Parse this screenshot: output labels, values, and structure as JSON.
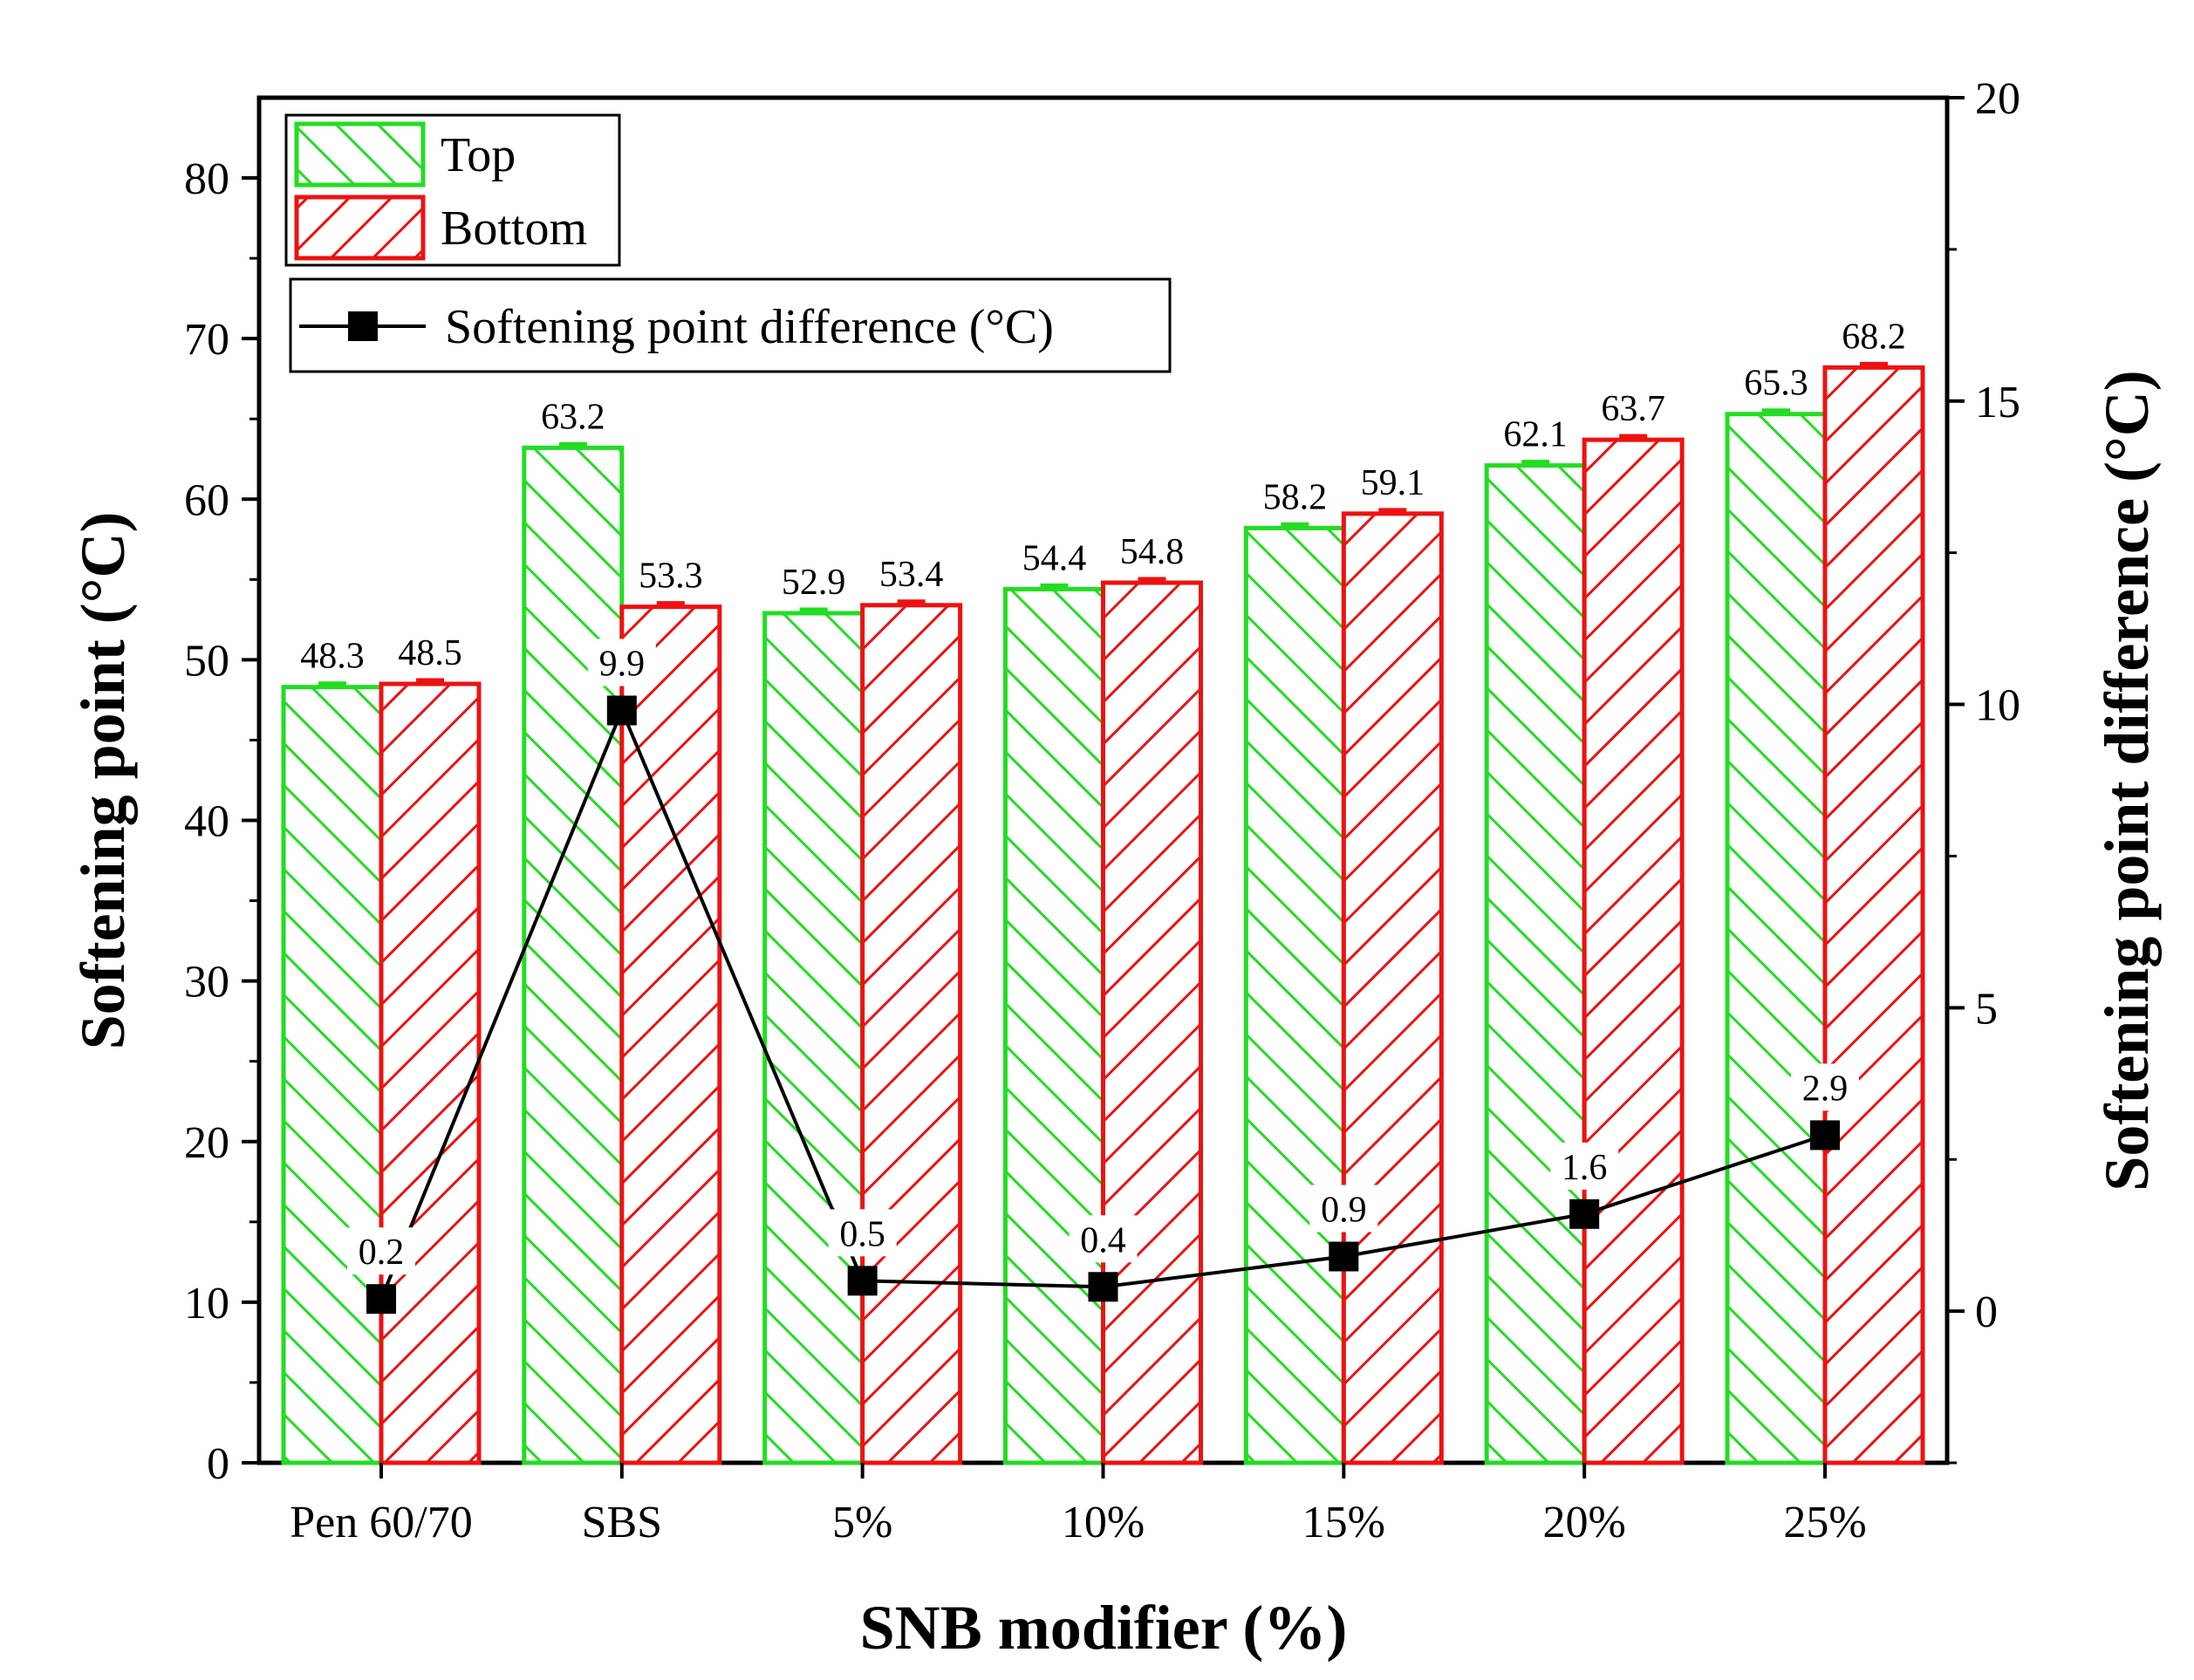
{
  "chart_data": {
    "type": "bar",
    "xlabel": "SNB modifier (%)",
    "ylabel": "Softening point (°C)",
    "y2label": "Softening point difference (°C)",
    "ylim": [
      0,
      85
    ],
    "y2lim": [
      -2.5,
      20
    ],
    "yticks": [
      0,
      10,
      20,
      30,
      40,
      50,
      60,
      70,
      80
    ],
    "y2ticks": [
      0,
      5,
      10,
      15,
      20
    ],
    "categories": [
      "Pen 60/70",
      "SBS",
      "5%",
      "10%",
      "15%",
      "20%",
      "25%"
    ],
    "series": [
      {
        "name": "Top",
        "values": [
          48.3,
          63.2,
          52.9,
          54.4,
          58.2,
          62.1,
          65.3
        ],
        "color": "#22dd22",
        "pattern": "forward-hatch"
      },
      {
        "name": "Bottom",
        "values": [
          48.5,
          53.3,
          53.4,
          54.8,
          59.1,
          63.7,
          68.2
        ],
        "color": "#ee1111",
        "pattern": "back-hatch"
      }
    ],
    "line_series": {
      "name": "Softening point difference (°C)",
      "axis": "right",
      "values": [
        0.2,
        9.9,
        0.5,
        0.4,
        0.9,
        1.6,
        2.9
      ],
      "color": "#000000"
    },
    "labels": {
      "top": [
        "48.3",
        "63.2",
        "52.9",
        "54.4",
        "58.2",
        "62.1",
        "65.3"
      ],
      "bottom": [
        "48.5",
        "53.3",
        "53.4",
        "54.8",
        "59.1",
        "63.7",
        "68.2"
      ],
      "diff": [
        "0.2",
        "9.9",
        "0.5",
        "0.4",
        "0.9",
        "1.6",
        "2.9"
      ]
    },
    "legend": {
      "top_label": "Top",
      "bottom_label": "Bottom",
      "line_label": "Softening point difference (°C)",
      "placement": "top-left"
    }
  }
}
